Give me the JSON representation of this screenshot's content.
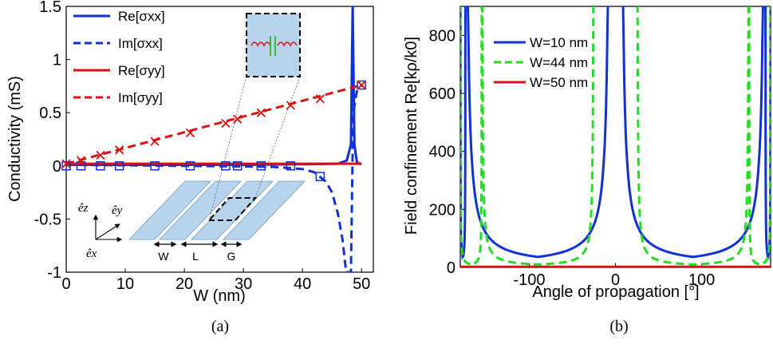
{
  "chart_data": [
    {
      "type": "line",
      "caption": "(a)",
      "xlabel": "W (nm)",
      "ylabel": "Conductivity (mS)",
      "xlim": [
        0,
        52
      ],
      "ylim": [
        -1,
        1.5
      ],
      "xticks": [
        "0",
        "10",
        "20",
        "30",
        "40",
        "50"
      ],
      "yticks": [
        "-1",
        "-0.5",
        "0",
        "0.5",
        "1",
        "1.5"
      ],
      "legend_position": "top-left",
      "series": [
        {
          "name": "Re[σxx]",
          "color": "#1030d8",
          "style": "solid",
          "x": [
            0,
            10,
            20,
            30,
            40,
            46,
            47.5,
            48.2,
            48.5,
            48.8,
            49.2,
            49.6,
            50
          ],
          "y": [
            0.01,
            0.01,
            0.01,
            0.01,
            0.015,
            0.02,
            0.05,
            0.2,
            1.5,
            0.2,
            0.04,
            0.02,
            0.02
          ]
        },
        {
          "name": "Im[σxx]",
          "color": "#1030d8",
          "style": "dashed",
          "x": [
            0,
            10,
            20,
            30,
            35,
            40,
            42,
            44,
            45,
            46,
            46.8,
            47.4,
            48.2,
            48.6,
            49.2,
            50
          ],
          "y": [
            0.01,
            0.005,
            0,
            -0.005,
            -0.01,
            -0.03,
            -0.06,
            -0.15,
            -0.25,
            -0.45,
            -0.7,
            -1.0,
            -1.0,
            0.5,
            0.7,
            0.76
          ]
        },
        {
          "name": "Re[σyy]",
          "color": "#e01010",
          "style": "solid",
          "x": [
            0,
            50
          ],
          "y": [
            0.02,
            0.02
          ]
        },
        {
          "name": "Im[σyy]",
          "color": "#e01010",
          "style": "dashed",
          "x": [
            0,
            50
          ],
          "y": [
            0.02,
            0.76
          ]
        }
      ],
      "markers_x": [
        0,
        2.5,
        5.8,
        9,
        15,
        21,
        27,
        29,
        33,
        38,
        43,
        50
      ],
      "square_marker_y": [
        0,
        0,
        0,
        0,
        0,
        0,
        0,
        0,
        0,
        0,
        -0.1,
        0.76
      ],
      "cross_marker_y": [
        0.02,
        0.05,
        0.1,
        0.15,
        0.23,
        0.31,
        0.4,
        0.44,
        0.5,
        0.57,
        0.63,
        0.76
      ],
      "inset_labels": [
        "W",
        "L",
        "G"
      ],
      "basis_labels": [
        "êz",
        "êy",
        "êx"
      ]
    },
    {
      "type": "line",
      "caption": "(b)",
      "xlabel": "Angle of propagation [°]",
      "ylabel": "Field confinement Re[kρ/k0]",
      "xlim": [
        -180,
        180
      ],
      "ylim": [
        0,
        900
      ],
      "xticks": [
        "-100",
        "0",
        "100"
      ],
      "yticks": [
        "0",
        "200",
        "400",
        "600",
        "800"
      ],
      "legend_position": "top-left",
      "series": [
        {
          "name": "W=10 nm",
          "color": "#1030d8",
          "style": "solid",
          "poles": [
            -6,
            6,
            174
          ],
          "min_value": 36
        },
        {
          "name": "W=44 nm",
          "color": "#22dd22",
          "style": "dashed",
          "poles": [
            -25,
            25,
            155
          ],
          "min_value": 10
        },
        {
          "name": "W=50 nm",
          "color": "#e01010",
          "style": "solid",
          "constant": 2
        }
      ]
    }
  ]
}
